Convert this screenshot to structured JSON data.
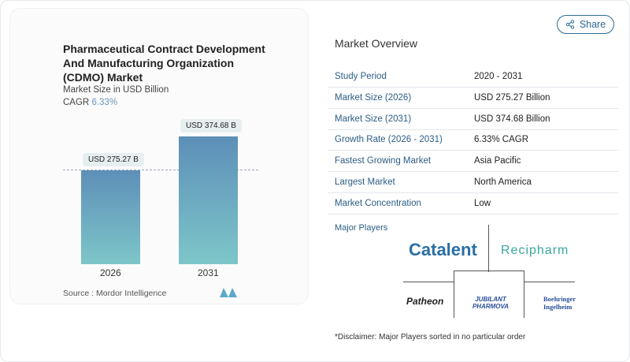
{
  "header": {
    "share_label": "Share",
    "share_icon": "share-icon"
  },
  "chart_card": {
    "title": "Pharmaceutical Contract Development And Manufacturing Organization (CDMO) Market",
    "subtitle": "Market Size in USD Billion",
    "cagr_label": "CAGR",
    "cagr_value": "6.33%",
    "source": "Source :  Mordor Intelligence"
  },
  "chart_data": {
    "type": "bar",
    "categories": [
      "2026",
      "2031"
    ],
    "values": [
      275.27,
      374.68
    ],
    "data_labels": [
      "USD 275.27 B",
      "USD 374.68 B"
    ],
    "ylabel": "Market Size in USD Billion",
    "ylim": [
      0,
      420
    ],
    "colors": [
      "#5d8fb8",
      "#7dc6c9"
    ]
  },
  "overview": {
    "title": "Market Overview",
    "rows": [
      {
        "label": "Study Period",
        "value": "2020 - 2031"
      },
      {
        "label": "Market Size (2026)",
        "value": "USD 275.27 Billion"
      },
      {
        "label": "Market Size (2031)",
        "value": "USD 374.68 Billion"
      },
      {
        "label": "Growth Rate (2026 - 2031)",
        "value": "6.33% CAGR"
      },
      {
        "label": "Fastest Growing Market",
        "value": "Asia Pacific"
      },
      {
        "label": "Largest Market",
        "value": "North America"
      },
      {
        "label": "Market Concentration",
        "value": "Low"
      }
    ]
  },
  "players": {
    "title": "Major Players",
    "logos": [
      "Catalent",
      "Recipharm",
      "Patheon",
      "JUBILANT PHARMOVA",
      "Boehringer Ingelheim"
    ],
    "disclaimer": "*Disclaimer: Major Players sorted in no particular order"
  }
}
